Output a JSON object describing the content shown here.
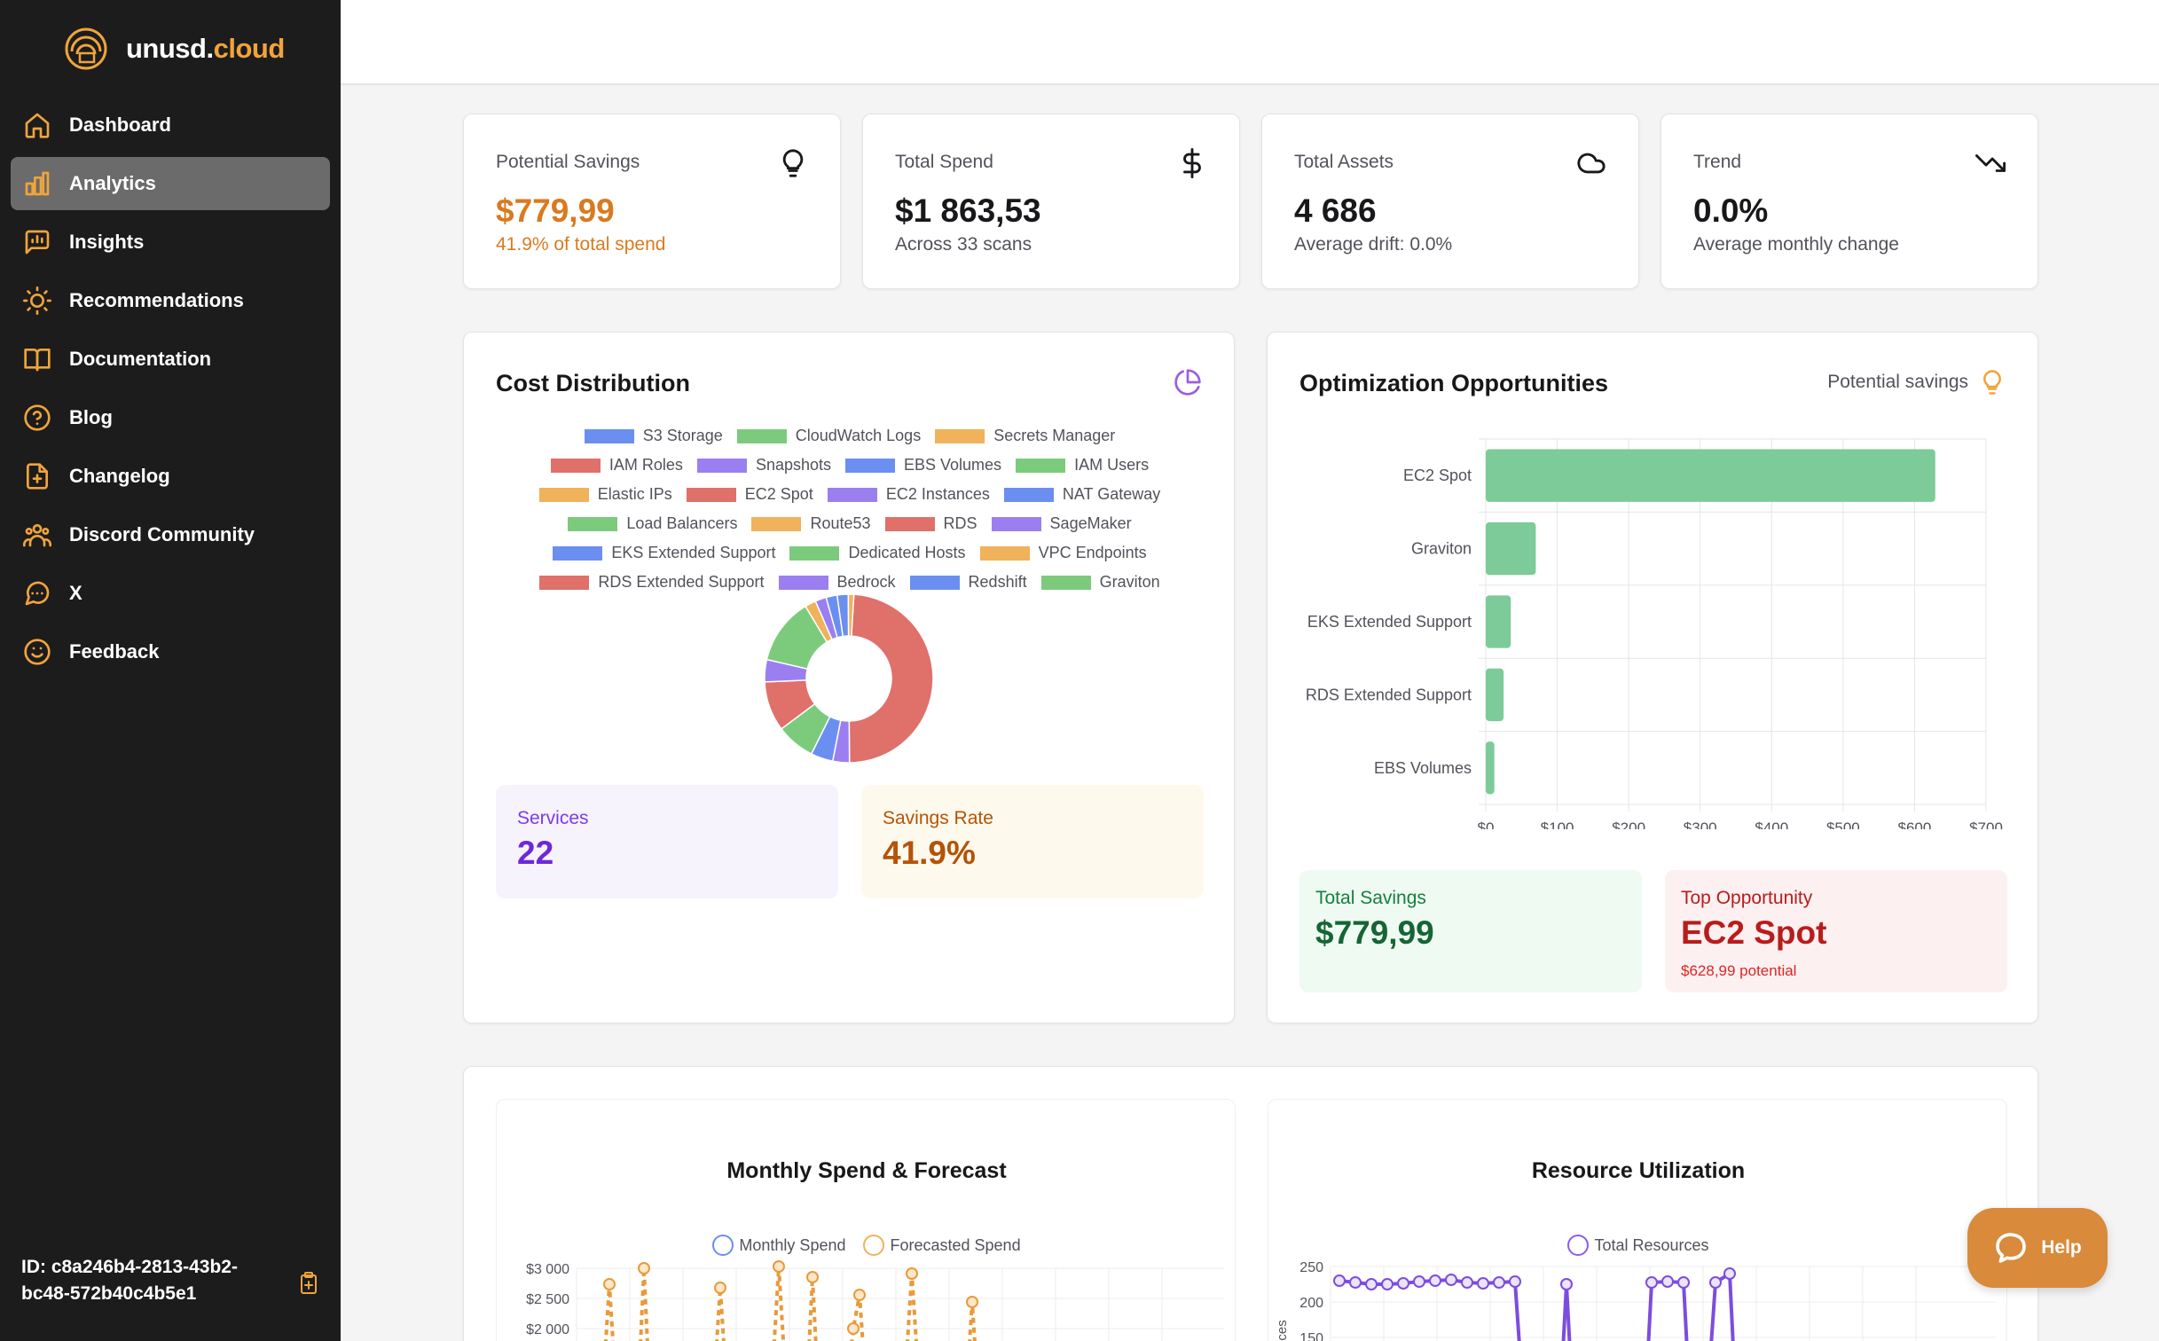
{
  "brand": {
    "name_prefix": "unusd.",
    "name_suffix": "cloud"
  },
  "sidebar": {
    "items": [
      {
        "label": "Dashboard",
        "icon": "home-icon"
      },
      {
        "label": "Analytics",
        "icon": "bar-chart-icon",
        "active": true
      },
      {
        "label": "Insights",
        "icon": "message-chart-icon"
      },
      {
        "label": "Recommendations",
        "icon": "lightbulb-icon"
      },
      {
        "label": "Documentation",
        "icon": "book-icon"
      },
      {
        "label": "Blog",
        "icon": "help-circle-icon"
      },
      {
        "label": "Changelog",
        "icon": "file-plus-icon"
      },
      {
        "label": "Discord Community",
        "icon": "users-icon"
      },
      {
        "label": "X",
        "icon": "message-circle-icon"
      },
      {
        "label": "Feedback",
        "icon": "smile-icon"
      }
    ],
    "id_text": "ID: c8a246b4-2813-43b2-bc48-572b40c4b5e1"
  },
  "stats": [
    {
      "label": "Potential Savings",
      "value": "$779,99",
      "sub": "41.9% of total spend",
      "icon": "lightbulb-icon"
    },
    {
      "label": "Total Spend",
      "value": "$1 863,53",
      "sub": "Across 33 scans",
      "icon": "dollar-icon"
    },
    {
      "label": "Total Assets",
      "value": "4 686",
      "sub": "Average drift: 0.0%",
      "icon": "cloud-icon"
    },
    {
      "label": "Trend",
      "value": "0.0%",
      "sub": "Average monthly change",
      "icon": "trending-down-icon"
    }
  ],
  "cost_distribution": {
    "title": "Cost Distribution",
    "services_label": "Services",
    "services_value": "22",
    "savings_rate_label": "Savings Rate",
    "savings_rate_value": "41.9%"
  },
  "optimization": {
    "title": "Optimization Opportunities",
    "potential_label": "Potential savings",
    "total_savings_label": "Total Savings",
    "total_savings_value": "$779,99",
    "top_label": "Top Opportunity",
    "top_value": "EC2 Spot",
    "top_sub": "$628,99 potential"
  },
  "monthly": {
    "title": "Monthly Spend & Forecast",
    "legend": [
      "Monthly Spend",
      "Forecasted Spend"
    ],
    "yticks": [
      "$3 000",
      "$2 500",
      "$2 000"
    ]
  },
  "utilization": {
    "title": "Resource Utilization",
    "legend": [
      "Total Resources"
    ],
    "yticks": [
      "250",
      "200",
      "150"
    ],
    "ylabel": "Resources"
  },
  "help_label": "Help",
  "colors": {
    "accent": "#f0a43c",
    "savings": "#d97a1f",
    "green": "#7ccb98",
    "purple": "#7c3aed"
  },
  "chart_data": [
    {
      "type": "pie",
      "title": "Cost Distribution",
      "legend": [
        "S3 Storage",
        "CloudWatch Logs",
        "Secrets Manager",
        "IAM Roles",
        "Snapshots",
        "EBS Volumes",
        "IAM Users",
        "Elastic IPs",
        "EC2 Spot",
        "EC2 Instances",
        "NAT Gateway",
        "Load Balancers",
        "Route53",
        "RDS",
        "SageMaker",
        "EKS Extended Support",
        "Dedicated Hosts",
        "VPC Endpoints",
        "RDS Extended Support",
        "Bedrock",
        "Redshift",
        "Graviton"
      ],
      "legend_colors": [
        "#6b8ff0",
        "#7ccb7c",
        "#f0b25a",
        "#e0706a",
        "#9b7ff0",
        "#6b8ff0",
        "#7ccb7c",
        "#f0b25a",
        "#e0706a",
        "#9b7ff0",
        "#6b8ff0",
        "#7ccb7c",
        "#f0b25a",
        "#e0706a",
        "#9b7ff0",
        "#6b8ff0",
        "#7ccb7c",
        "#f0b25a",
        "#e0706a",
        "#9b7ff0",
        "#6b8ff0",
        "#7ccb7c"
      ],
      "slices": [
        {
          "label": "EC2 Spot",
          "value": 46,
          "color": "#e0706a"
        },
        {
          "label": "Snapshots",
          "value": 3,
          "color": "#9b7ff0"
        },
        {
          "label": "EBS Volumes",
          "value": 4,
          "color": "#6b8ff0"
        },
        {
          "label": "Load Balancers",
          "value": 7,
          "color": "#7ccb7c"
        },
        {
          "label": "RDS",
          "value": 9,
          "color": "#e0706a"
        },
        {
          "label": "SageMaker",
          "value": 4,
          "color": "#9b7ff0"
        },
        {
          "label": "Dedicated Hosts",
          "value": 12,
          "color": "#7ccb7c"
        },
        {
          "label": "VPC Endpoints",
          "value": 2,
          "color": "#f0b25a"
        },
        {
          "label": "Bedrock",
          "value": 2,
          "color": "#9b7ff0"
        },
        {
          "label": "Redshift",
          "value": 2,
          "color": "#6b8ff0"
        },
        {
          "label": "S3 Storage",
          "value": 2,
          "color": "#6b8ff0"
        },
        {
          "label": "Secrets Manager",
          "value": 1,
          "color": "#f0b25a"
        }
      ]
    },
    {
      "type": "bar",
      "orientation": "horizontal",
      "title": "Optimization Opportunities",
      "categories": [
        "EC2 Spot",
        "Graviton",
        "EKS Extended Support",
        "RDS Extended Support",
        "EBS Volumes"
      ],
      "values": [
        628.99,
        70,
        35,
        25,
        12
      ],
      "xlim": [
        0,
        700
      ],
      "xticks": [
        "$0",
        "$100",
        "$200",
        "$300",
        "$400",
        "$500",
        "$600",
        "$700"
      ],
      "color": "#7ccb98"
    }
  ]
}
